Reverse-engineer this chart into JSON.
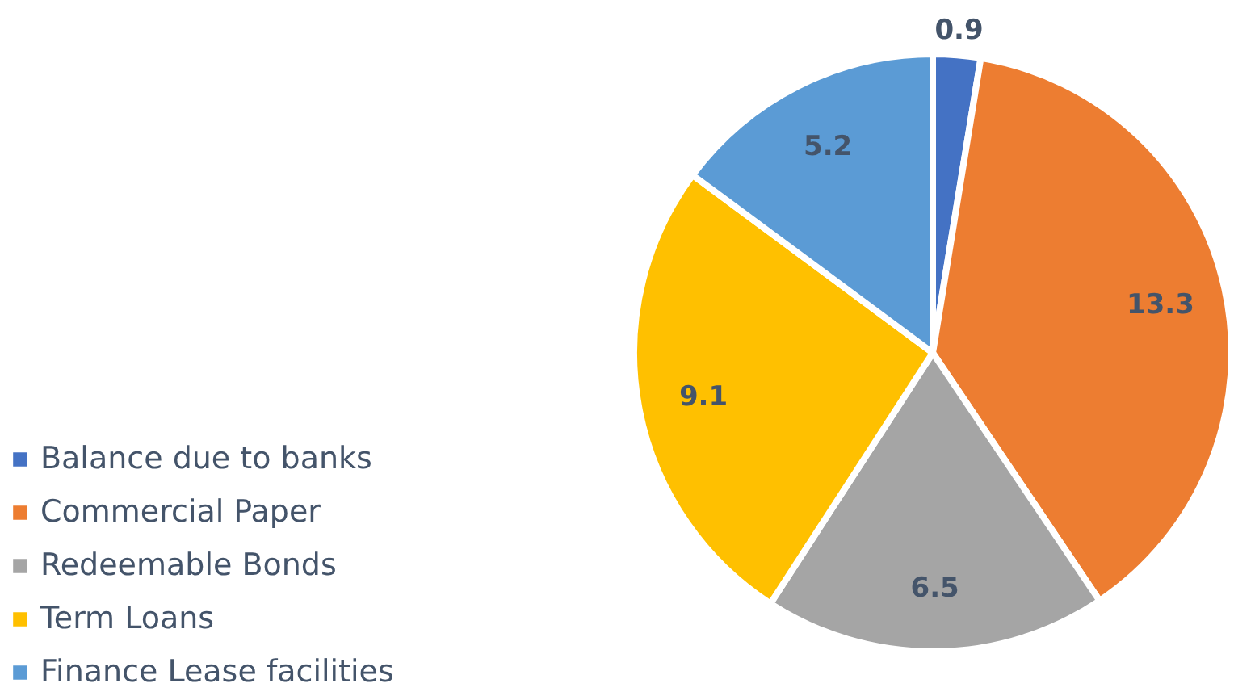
{
  "chart_data": {
    "type": "pie",
    "categories": [
      "Balance due to banks",
      "Commercial Paper",
      "Redeemable Bonds",
      "Term Loans",
      "Finance Lease facilities"
    ],
    "values": [
      0.9,
      13.3,
      6.5,
      9.1,
      5.2
    ],
    "colors": [
      "#4472c4",
      "#ed7d31",
      "#a5a5a5",
      "#ffc000",
      "#5b9bd5"
    ],
    "data_labels": true,
    "legend": "bottom left"
  }
}
